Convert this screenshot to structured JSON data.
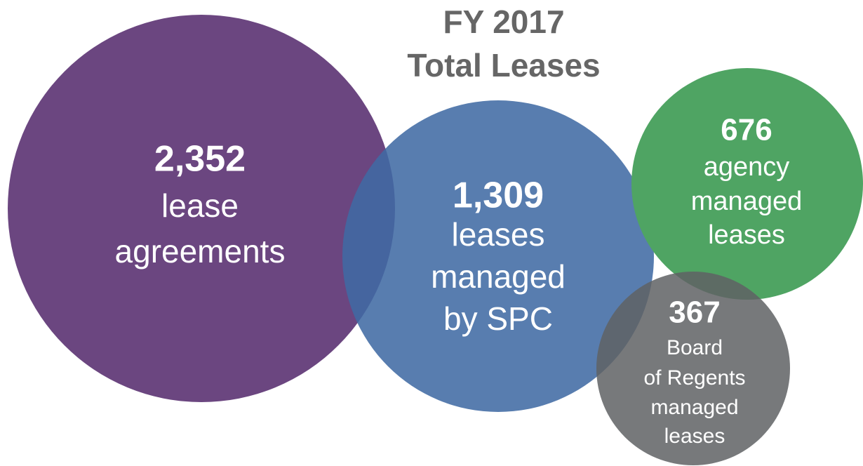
{
  "title": [
    "FY 2017",
    "Total Leases"
  ],
  "bubbles": [
    {
      "number": "2,352",
      "label": [
        "lease",
        "agreements"
      ]
    },
    {
      "number": "1,309",
      "label": [
        "leases",
        "managed",
        "by SPC"
      ]
    },
    {
      "number": "676",
      "label": [
        "agency",
        "managed",
        "leases"
      ]
    },
    {
      "number": "367",
      "label": [
        "Board",
        "of Regents",
        "managed",
        "leases"
      ]
    }
  ]
}
